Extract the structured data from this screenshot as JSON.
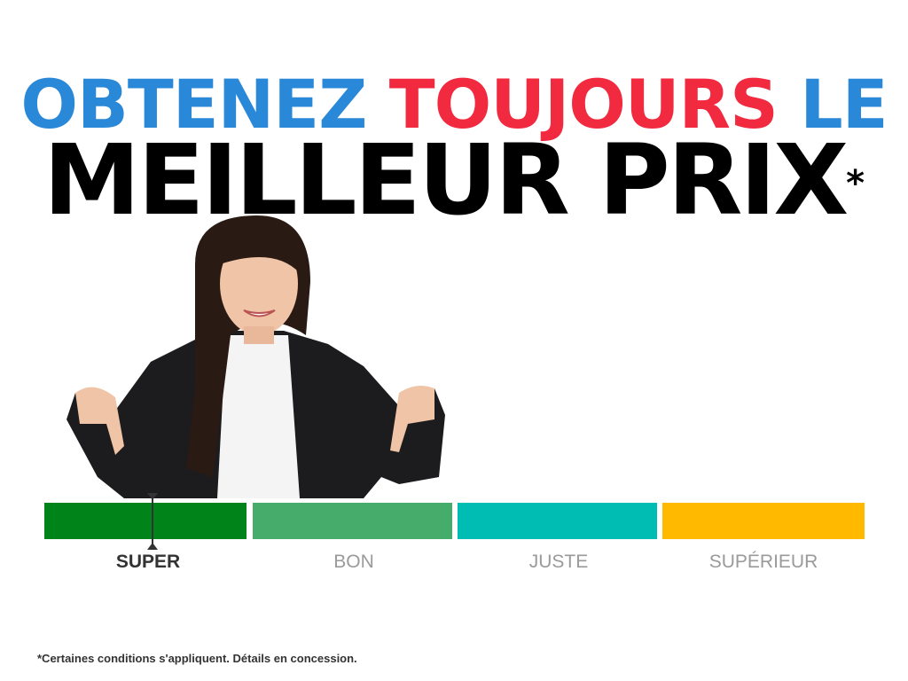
{
  "headline": {
    "line1": [
      {
        "text": "OBTENEZ ",
        "color": "#2a88d8"
      },
      {
        "text": "TOUJOURS ",
        "color": "#f22a40"
      },
      {
        "text": "LE",
        "color": "#2a88d8"
      }
    ],
    "line2": "MEILLEUR PRIX",
    "asterisk": "*"
  },
  "price_scale": {
    "segments": [
      {
        "label": "SUPER",
        "color": "#00841a",
        "active": true
      },
      {
        "label": "BON",
        "color": "#46ac6c",
        "active": false
      },
      {
        "label": "JUSTE",
        "color": "#00bdb3",
        "active": false
      },
      {
        "label": "SUPÉRIEUR",
        "color": "#ffba00",
        "active": false
      }
    ],
    "marker_position": "SUPER"
  },
  "footnote": "*Certaines conditions s'appliquent. Détails en concession."
}
